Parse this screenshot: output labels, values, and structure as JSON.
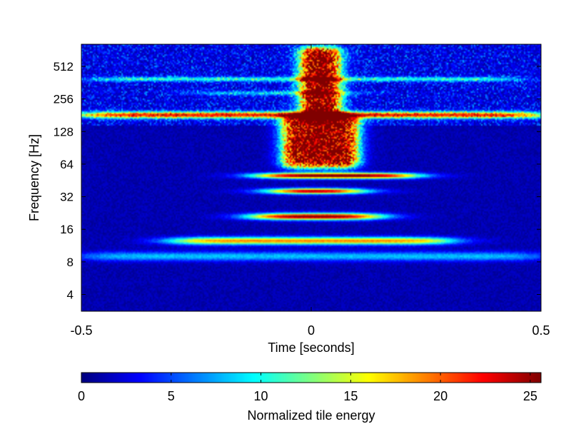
{
  "chart_data": {
    "type": "heatmap",
    "title": "",
    "xlabel": "Time [seconds]",
    "ylabel": "Frequency [Hz]",
    "xlim": [
      -0.5,
      0.5
    ],
    "ylim": [
      2.8,
      820
    ],
    "y_scale": "log2",
    "x_ticks": [
      -0.5,
      0,
      0.5
    ],
    "x_tick_labels": [
      "-0.5",
      "0",
      "0.5"
    ],
    "y_ticks": [
      4,
      8,
      16,
      32,
      64,
      128,
      256,
      512
    ],
    "y_tick_labels": [
      "4",
      "8",
      "16",
      "32",
      "64",
      "128",
      "256",
      "512"
    ],
    "grid": false,
    "colormap": "jet",
    "colorbar": {
      "label": "Normalized tile energy",
      "range": [
        0,
        25.6
      ],
      "ticks": [
        0,
        5,
        10,
        15,
        20,
        25
      ],
      "tick_labels": [
        "0",
        "5",
        "10",
        "15",
        "20",
        "25"
      ],
      "placement": "bottom"
    },
    "background_level": 1.2,
    "features": [
      {
        "name": "band",
        "t_start": -0.5,
        "t_end": 0.5,
        "f": 182,
        "energy": 20,
        "bw": 0.07
      },
      {
        "name": "band",
        "t_start": -0.48,
        "t_end": 0.45,
        "f": 390,
        "energy": 8,
        "bw": 0.05
      },
      {
        "name": "band",
        "t_start": -0.25,
        "t_end": 0.1,
        "f": 290,
        "energy": 6,
        "bw": 0.05
      },
      {
        "name": "band",
        "t_start": -0.5,
        "t_end": 0.5,
        "f": 9,
        "energy": 7,
        "bw": 0.1
      },
      {
        "name": "band",
        "t_start": -0.3,
        "t_end": 0.3,
        "f": 12.5,
        "energy": 18,
        "bw": 0.08
      },
      {
        "name": "band",
        "t_start": -0.12,
        "t_end": 0.14,
        "f": 21,
        "energy": 26,
        "bw": 0.07
      },
      {
        "name": "band",
        "t_start": -0.08,
        "t_end": 0.1,
        "f": 36,
        "energy": 26,
        "bw": 0.06
      },
      {
        "name": "band",
        "t_start": -0.11,
        "t_end": 0.22,
        "f": 50,
        "energy": 26,
        "bw": 0.06
      },
      {
        "name": "blob",
        "t_start": -0.06,
        "t_end": 0.1,
        "f_low": 60,
        "f_high": 175,
        "energy": 26
      },
      {
        "name": "blob",
        "t_start": -0.02,
        "t_end": 0.06,
        "f_low": 170,
        "f_high": 760,
        "energy": 26
      }
    ]
  }
}
